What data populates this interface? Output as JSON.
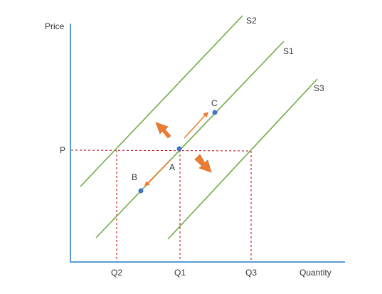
{
  "axes": {
    "y_label": "Price",
    "x_label": "Quantity",
    "price_level_label": "P",
    "x_ticks": [
      "Q2",
      "Q1",
      "Q3"
    ]
  },
  "supply_curves": [
    {
      "label": "S2"
    },
    {
      "label": "S1"
    },
    {
      "label": "S3"
    }
  ],
  "points": [
    {
      "label": "A"
    },
    {
      "label": "B"
    },
    {
      "label": "C"
    }
  ],
  "colors": {
    "axis": "#5b9bd5",
    "curve": "#70ad47",
    "guide": "#c00000",
    "point": "#4472c4",
    "arrow": "#ed7d31"
  }
}
